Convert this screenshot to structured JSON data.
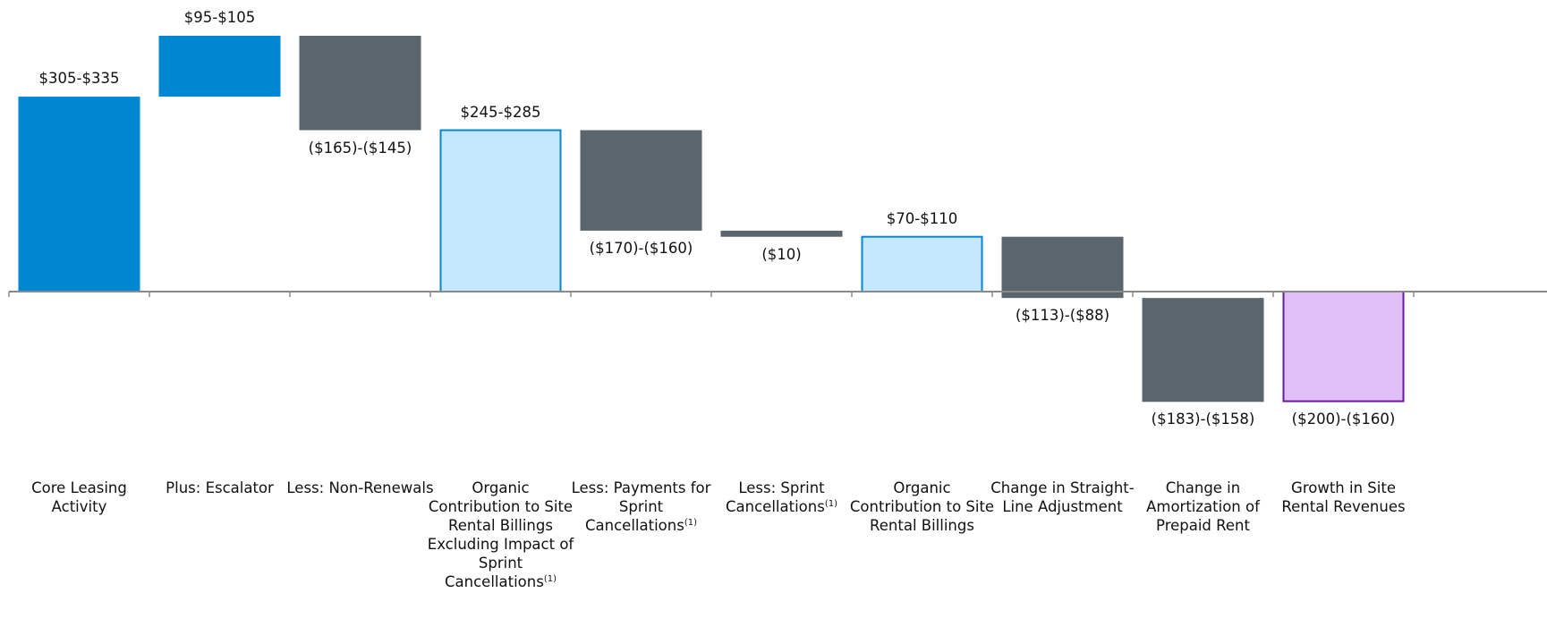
{
  "chart_data": {
    "type": "waterfall",
    "categories": [
      "Core Leasing Activity",
      "Plus: Escalator",
      "Less: Non-Renewals",
      "Organic Contribution to Site Rental Billings Excluding Impact of Sprint Cancellations",
      "Less: Payments for Sprint Cancellations",
      "Less: Sprint Cancellations",
      "Organic Contribution to Site Rental Billings",
      "Change in Straight-Line Adjustment",
      "Change in Amortization of Prepaid Rent",
      "Growth in Site Rental Revenues"
    ],
    "category_notes": [
      null,
      null,
      null,
      "(1)",
      "(1)",
      "(1)",
      null,
      null,
      null,
      null
    ],
    "kinds": [
      "step",
      "step",
      "step",
      "total",
      "step",
      "step",
      "total",
      "step",
      "step",
      "total"
    ],
    "values": [
      320,
      100,
      -155,
      265,
      -165,
      -10,
      90,
      -100.5,
      -170.5,
      -180
    ],
    "value_labels": [
      "$305-$335",
      "$95-$105",
      "($165)-($145)",
      "$245-$285",
      "($170)-($160)",
      "($10)",
      "$70-$110",
      "($113)-($88)",
      "($183)-($158)",
      "($200)-($160)"
    ],
    "colors": [
      "#0087d1",
      "#0087d1",
      "#5a656d",
      "#c5e8fc",
      "#5a656d",
      "#5a656d",
      "#c5e8fc",
      "#5a656d",
      "#5a656d",
      "#e0bff8"
    ],
    "border_colors": [
      null,
      null,
      null,
      "#0a85cf",
      null,
      null,
      "#0a85cf",
      null,
      null,
      "#6a1b9a"
    ]
  }
}
